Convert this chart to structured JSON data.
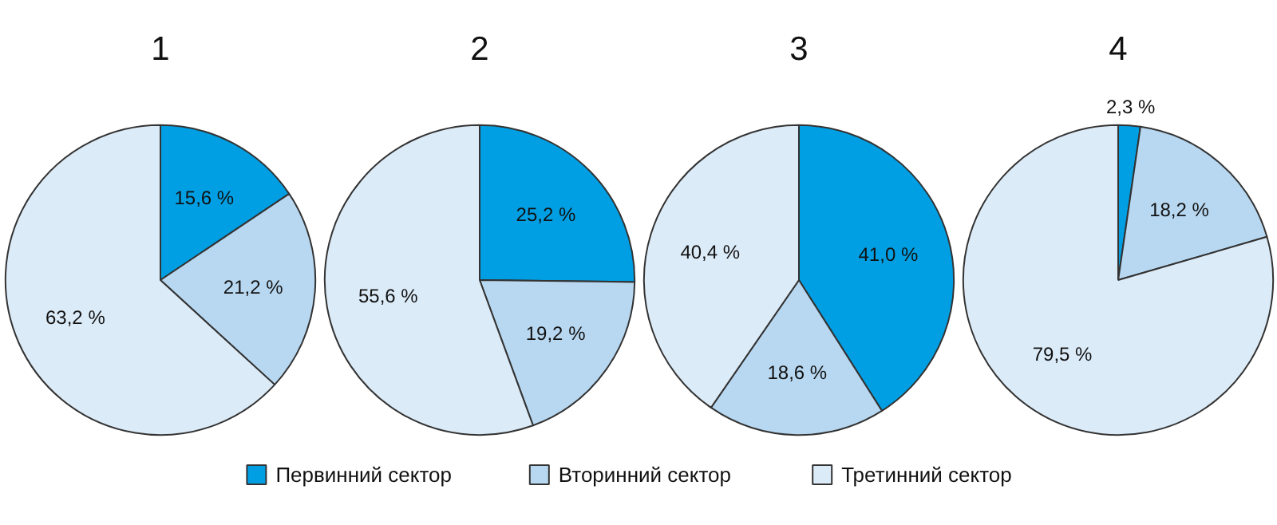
{
  "chart_data": [
    {
      "type": "pie",
      "title": "1",
      "categories": [
        "Первинний сектор",
        "Вторинний сектор",
        "Третинний сектор"
      ],
      "values": [
        15.6,
        21.2,
        63.2
      ],
      "value_labels": [
        "15,6 %",
        "21,2 %",
        "63,2 %"
      ],
      "colors": [
        "#009fe3",
        "#b8d8f1",
        "#dcebf8"
      ],
      "legend": "bottom"
    },
    {
      "type": "pie",
      "title": "2",
      "values": [
        25.2,
        19.2,
        55.6
      ],
      "value_labels": [
        "25,2 %",
        "19,2 %",
        "55,6 %"
      ],
      "colors": [
        "#009fe3",
        "#b8d8f1",
        "#dcebf8"
      ]
    },
    {
      "type": "pie",
      "title": "3",
      "values": [
        41.0,
        18.6,
        40.4
      ],
      "value_labels": [
        "41,0 %",
        "18,6 %",
        "40,4 %"
      ],
      "colors": [
        "#009fe3",
        "#b8d8f1",
        "#dcebf8"
      ]
    },
    {
      "type": "pie",
      "title": "4",
      "values": [
        2.3,
        18.2,
        79.5
      ],
      "value_labels": [
        "2,3 %",
        "18,2 %",
        "79,5 %"
      ],
      "colors": [
        "#009fe3",
        "#b8d8f1",
        "#dcebf8"
      ]
    }
  ]
}
